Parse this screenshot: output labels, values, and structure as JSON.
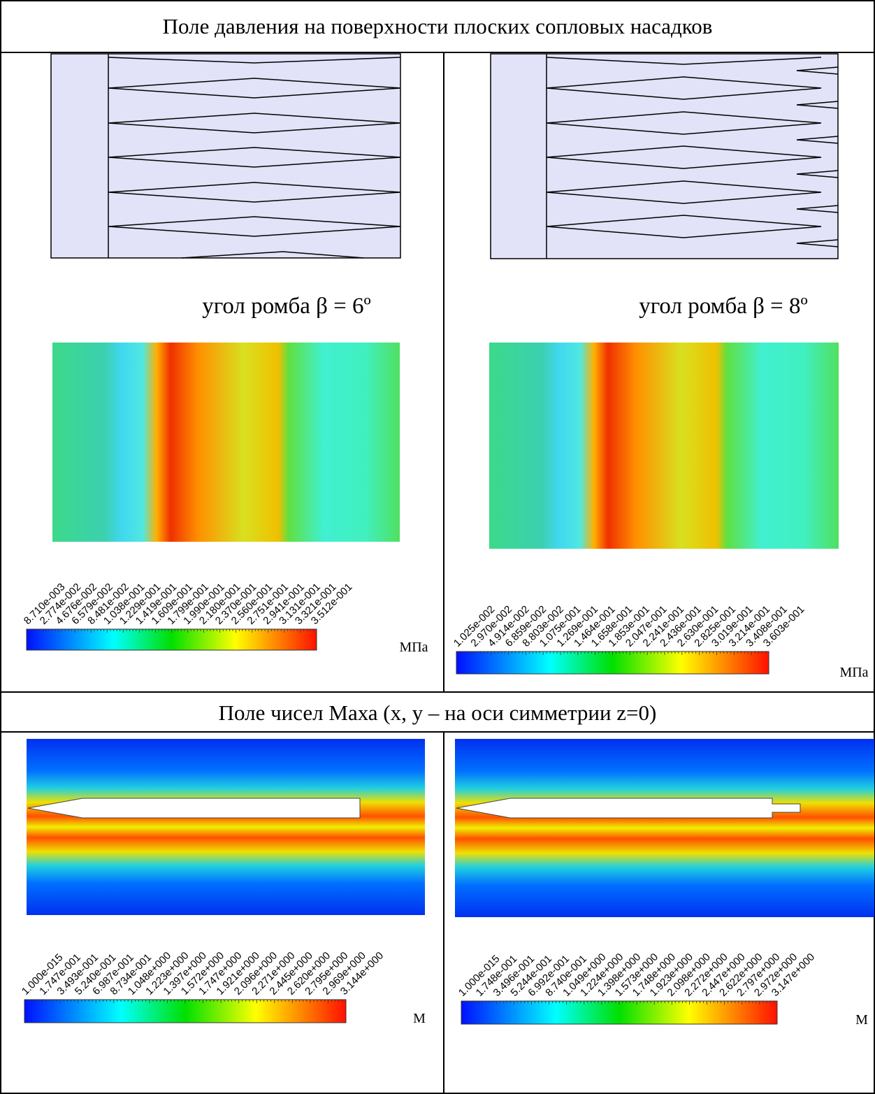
{
  "header": {
    "pressure_title": "Поле давления на поверхности плоских сопловых насадков",
    "mach_title": "Поле чисел Маха (x, y – на оси симметрии z=0)"
  },
  "pressure": {
    "left": {
      "caption": "угол ромба β = 6º",
      "unit": "МПа",
      "scale_labels": [
        "8.710e-003",
        "2.774e-002",
        "4.676e-002",
        "6.579e-002",
        "8.481e-002",
        "1.038e-001",
        "1.229e-001",
        "1.419e-001",
        "1.609e-001",
        "1.799e-001",
        "1.990e-001",
        "2.180e-001",
        "2.370e-001",
        "2.560e-001",
        "2.751e-001",
        "2.941e-001",
        "3.131e-001",
        "3.321e-001",
        "3.512e-001"
      ]
    },
    "right": {
      "caption": "угол ромба β = 8º",
      "unit": "МПа",
      "scale_labels": [
        "1.025e-002",
        "2.970e-002",
        "4.914e-002",
        "6.859e-002",
        "8.803e-002",
        "1.075e-001",
        "1.269e-001",
        "1.464e-001",
        "1.658e-001",
        "1.853e-001",
        "2.047e-001",
        "2.241e-001",
        "2.436e-001",
        "2.630e-001",
        "2.825e-001",
        "3.019e-001",
        "3.214e-001",
        "3.408e-001",
        "3.603e-001"
      ]
    }
  },
  "mach": {
    "left": {
      "unit": "М",
      "scale_labels": [
        "1.000e-015",
        "1.747e-001",
        "3.493e-001",
        "5.240e-001",
        "6.987e-001",
        "8.734e-001",
        "1.048e+000",
        "1.223e+000",
        "1.397e+000",
        "1.572e+000",
        "1.747e+000",
        "1.921e+000",
        "2.096e+000",
        "2.271e+000",
        "2.445e+000",
        "2.620e+000",
        "2.795e+000",
        "2.969e+000",
        "3.144e+000"
      ]
    },
    "right": {
      "unit": "М",
      "scale_labels": [
        "1.000e-015",
        "1.748e-001",
        "3.496e-001",
        "5.244e-001",
        "6.992e-001",
        "8.740e-001",
        "1.049e+000",
        "1.224e+000",
        "1.398e+000",
        "1.573e+000",
        "1.748e+000",
        "1.923e+000",
        "2.098e+000",
        "2.272e+000",
        "2.447e+000",
        "2.622e+000",
        "2.797e+000",
        "2.972e+000",
        "3.147e+000"
      ]
    }
  }
}
